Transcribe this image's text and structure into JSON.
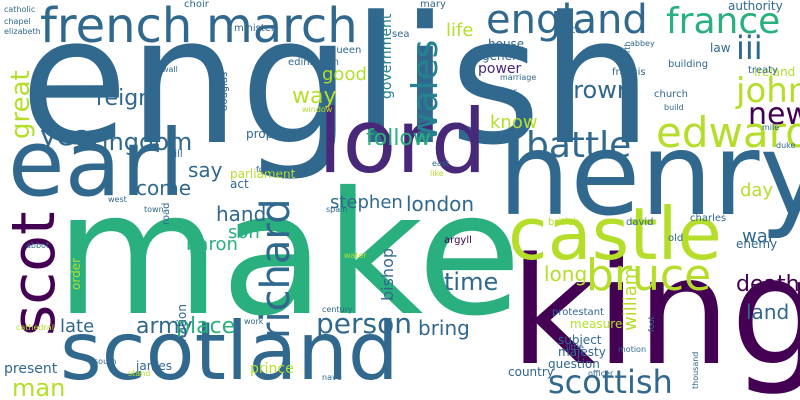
{
  "words": [
    {
      "text": "english",
      "color": "#31688e"
    },
    {
      "text": "make",
      "color": "#2ab07f"
    },
    {
      "text": "king",
      "color": "#440154"
    },
    {
      "text": "henry",
      "color": "#31688e"
    },
    {
      "text": "scotland",
      "color": "#31688e"
    },
    {
      "text": "earl",
      "color": "#31688e"
    },
    {
      "text": "lord",
      "color": "#482878"
    },
    {
      "text": "castle",
      "color": "#b5de2b"
    },
    {
      "text": "scot",
      "color": "#440154"
    },
    {
      "text": "french",
      "color": "#31688e"
    },
    {
      "text": "march",
      "color": "#31688e"
    },
    {
      "text": "england",
      "color": "#31688e"
    },
    {
      "text": "bruce",
      "color": "#b5de2b"
    },
    {
      "text": "richard",
      "color": "#31688e"
    },
    {
      "text": "edward",
      "color": "#b5de2b"
    },
    {
      "text": "france",
      "color": "#2ab07f"
    },
    {
      "text": "battle",
      "color": "#31688e"
    },
    {
      "text": "scottish",
      "color": "#31688e"
    },
    {
      "text": "person",
      "color": "#31688e"
    },
    {
      "text": "wales",
      "color": "#26828e"
    },
    {
      "text": "john",
      "color": "#b5de2b"
    },
    {
      "text": "iii",
      "color": "#31688e"
    },
    {
      "text": "new",
      "color": "#440154"
    },
    {
      "text": "great",
      "color": "#b5de2b"
    },
    {
      "text": "year",
      "color": "#31688e"
    },
    {
      "text": "kingdom",
      "color": "#31688e"
    },
    {
      "text": "time",
      "color": "#31688e"
    },
    {
      "text": "crown",
      "color": "#31688e"
    },
    {
      "text": "army",
      "color": "#31688e"
    },
    {
      "text": "place",
      "color": "#2ab07f"
    },
    {
      "text": "man",
      "color": "#b5de2b"
    },
    {
      "text": "death",
      "color": "#440154"
    },
    {
      "text": "reign",
      "color": "#31688e"
    },
    {
      "text": "follow",
      "color": "#2ab07f"
    },
    {
      "text": "london",
      "color": "#31688e"
    },
    {
      "text": "bring",
      "color": "#31688e"
    },
    {
      "text": "long",
      "color": "#b5de2b"
    },
    {
      "text": "land",
      "color": "#31688e"
    },
    {
      "text": "way",
      "color": "#b5de2b"
    },
    {
      "text": "good",
      "color": "#b5de2b"
    },
    {
      "text": "life",
      "color": "#b5de2b"
    },
    {
      "text": "know",
      "color": "#b5de2b"
    },
    {
      "text": "say",
      "color": "#31688e"
    },
    {
      "text": "come",
      "color": "#31688e"
    },
    {
      "text": "hand",
      "color": "#31688e"
    },
    {
      "text": "son",
      "color": "#2ab07f"
    },
    {
      "text": "stephen",
      "color": "#31688e"
    },
    {
      "text": "day",
      "color": "#b5de2b"
    },
    {
      "text": "war",
      "color": "#31688e"
    },
    {
      "text": "late",
      "color": "#31688e"
    },
    {
      "text": "baron",
      "color": "#2ab07f"
    },
    {
      "text": "bishop",
      "color": "#31688e"
    },
    {
      "text": "william",
      "color": "#b5de2b"
    },
    {
      "text": "prince",
      "color": "#b5de2b"
    },
    {
      "text": "present",
      "color": "#31688e"
    },
    {
      "text": "country",
      "color": "#31688e"
    },
    {
      "text": "enemy",
      "color": "#31688e"
    },
    {
      "text": "government",
      "color": "#26828e"
    },
    {
      "text": "law",
      "color": "#31688e"
    },
    {
      "text": "authority",
      "color": "#31688e"
    },
    {
      "text": "power",
      "color": "#482878"
    },
    {
      "text": "house",
      "color": "#31688e"
    },
    {
      "text": "general",
      "color": "#31688e"
    },
    {
      "text": "parliament",
      "color": "#b5de2b"
    },
    {
      "text": "propose",
      "color": "#31688e"
    },
    {
      "text": "act",
      "color": "#31688e"
    },
    {
      "text": "majesty",
      "color": "#31688e"
    },
    {
      "text": "subject",
      "color": "#31688e"
    },
    {
      "text": "measure",
      "color": "#b5de2b"
    },
    {
      "text": "question",
      "color": "#31688e"
    },
    {
      "text": "protestant",
      "color": "#31688e"
    },
    {
      "text": "order",
      "color": "#b5de2b"
    },
    {
      "text": "nation",
      "color": "#31688e"
    },
    {
      "text": "james",
      "color": "#31688e"
    },
    {
      "text": "charles",
      "color": "#31688e"
    },
    {
      "text": "old",
      "color": "#31688e"
    },
    {
      "text": "ireland",
      "color": "#b5de2b"
    },
    {
      "text": "treaty",
      "color": "#31688e"
    },
    {
      "text": "church",
      "color": "#31688e"
    },
    {
      "text": "building",
      "color": "#31688e"
    },
    {
      "text": "francis",
      "color": "#31688e"
    },
    {
      "text": "argyll",
      "color": "#440154"
    },
    {
      "text": "david",
      "color": "#31688e"
    },
    {
      "text": "british",
      "color": "#b5de2b"
    },
    {
      "text": "edinburgh",
      "color": "#31688e"
    },
    {
      "text": "queen",
      "color": "#31688e"
    },
    {
      "text": "douglas",
      "color": "#31688e"
    },
    {
      "text": "minister",
      "color": "#31688e"
    },
    {
      "text": "choir",
      "color": "#31688e"
    },
    {
      "text": "mary",
      "color": "#31688e"
    },
    {
      "text": "state",
      "color": "#31688e"
    },
    {
      "text": "sea",
      "color": "#31688e"
    },
    {
      "text": "abbey",
      "color": "#31688e"
    },
    {
      "text": "north",
      "color": "#31688e"
    },
    {
      "text": "catholic",
      "color": "#31688e"
    },
    {
      "text": "chapel",
      "color": "#31688e"
    },
    {
      "text": "elizabeth",
      "color": "#31688e"
    },
    {
      "text": "wall",
      "color": "#31688e"
    },
    {
      "text": "window",
      "color": "#b5de2b"
    },
    {
      "text": "aisle",
      "color": "#31688e"
    },
    {
      "text": "marriage",
      "color": "#31688e"
    },
    {
      "text": "tower",
      "color": "#31688e"
    },
    {
      "text": "build",
      "color": "#31688e"
    },
    {
      "text": "mile",
      "color": "#31688e"
    },
    {
      "text": "duke",
      "color": "#31688e"
    },
    {
      "text": "east",
      "color": "#31688e"
    },
    {
      "text": "like",
      "color": "#b5de2b"
    },
    {
      "text": "hill",
      "color": "#31688e"
    },
    {
      "text": "footnote",
      "color": "#31688e"
    },
    {
      "text": "west",
      "color": "#31688e"
    },
    {
      "text": "town",
      "color": "#31688e"
    },
    {
      "text": "road",
      "color": "#31688e"
    },
    {
      "text": "spain",
      "color": "#31688e"
    },
    {
      "text": "water",
      "color": "#b5de2b"
    },
    {
      "text": "abbot",
      "color": "#31688e"
    },
    {
      "text": "cathedral",
      "color": "#b5de2b"
    },
    {
      "text": "work",
      "color": "#31688e"
    },
    {
      "text": "century",
      "color": "#31688e"
    },
    {
      "text": "south",
      "color": "#31688e"
    },
    {
      "text": "stand",
      "color": "#b5de2b"
    },
    {
      "text": "nave",
      "color": "#31688e"
    },
    {
      "text": "officer",
      "color": "#31688e"
    },
    {
      "text": "little",
      "color": "#31688e"
    },
    {
      "text": "motion",
      "color": "#31688e"
    },
    {
      "text": "foot",
      "color": "#31688e"
    },
    {
      "text": "thousand",
      "color": "#31688e"
    }
  ]
}
